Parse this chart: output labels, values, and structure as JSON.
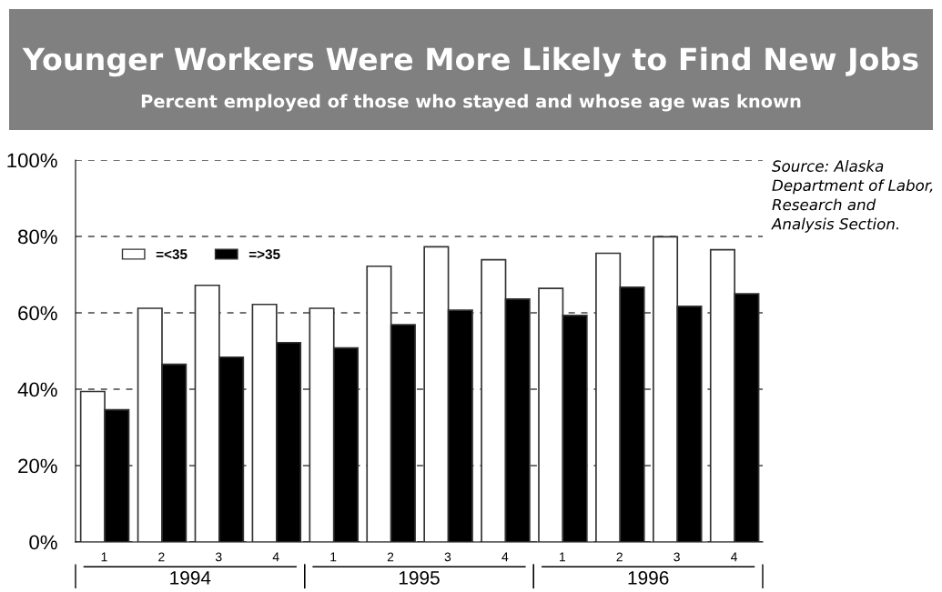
{
  "chart_data": {
    "type": "bar",
    "title": "Younger Workers Were More Likely to Find New Jobs",
    "subtitle": "Percent employed of those who stayed and whose age was known",
    "categories": [
      "1",
      "2",
      "3",
      "4",
      "1",
      "2",
      "3",
      "4",
      "1",
      "2",
      "3",
      "4"
    ],
    "series": [
      {
        "name": "=<35",
        "color": "#ffffff",
        "values": [
          39.4,
          61.2,
          67.2,
          62.2,
          61.2,
          72.2,
          77.3,
          73.9,
          66.4,
          75.6,
          79.9,
          76.5
        ]
      },
      {
        "name": "=>35",
        "color": "#000000",
        "values": [
          34.6,
          46.5,
          48.4,
          52.2,
          50.8,
          56.9,
          60.7,
          63.6,
          59.3,
          66.7,
          61.7,
          65.0
        ]
      }
    ],
    "ylim": [
      0,
      100
    ],
    "yticks": [
      {
        "value": 0,
        "label": "0%"
      },
      {
        "value": 20,
        "label": "20%"
      },
      {
        "value": 40,
        "label": "40%"
      },
      {
        "value": 60,
        "label": "60%"
      },
      {
        "value": 80,
        "label": "80%"
      },
      {
        "value": 100,
        "label": "100%"
      }
    ],
    "grid": "y",
    "legend": "top left",
    "annotations": [
      "1994",
      "1995",
      "1996",
      "Source: Alaska Department of Labor, Research and Analysis Section."
    ]
  }
}
